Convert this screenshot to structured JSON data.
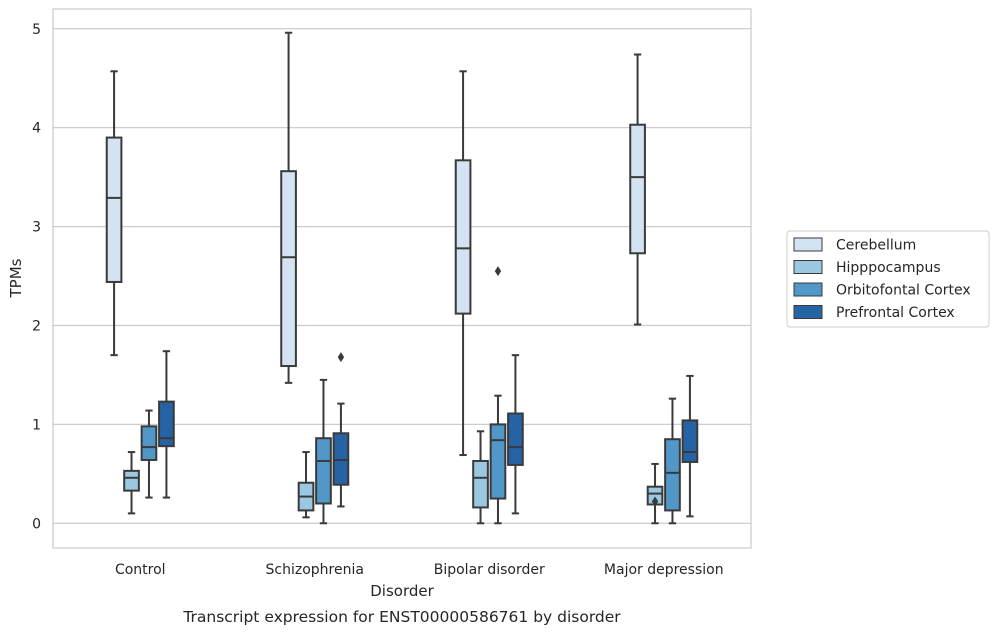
{
  "caption": "Transcript expression for ENST00000586761 by disorder",
  "chart_data": {
    "type": "box",
    "title": "",
    "xlabel": "Disorder",
    "ylabel": "TPMs",
    "ylim": [
      -0.25,
      5.2
    ],
    "yticks": [
      0,
      1,
      2,
      3,
      4,
      5
    ],
    "grid": "horizontal",
    "legend_position": "right",
    "categories": [
      "Control",
      "Schizophrenia",
      "Bipolar disorder",
      "Major depression"
    ],
    "series": [
      {
        "name": "Cerebellum",
        "color": "#d3e3f3",
        "boxes": [
          {
            "whisker_low": 1.7,
            "q1": 2.44,
            "median": 3.29,
            "q3": 3.9,
            "whisker_high": 4.57,
            "outliers": []
          },
          {
            "whisker_low": 1.42,
            "q1": 1.59,
            "median": 2.69,
            "q3": 3.56,
            "whisker_high": 4.96,
            "outliers": []
          },
          {
            "whisker_low": 0.69,
            "q1": 2.12,
            "median": 2.78,
            "q3": 3.67,
            "whisker_high": 4.57,
            "outliers": []
          },
          {
            "whisker_low": 2.01,
            "q1": 2.73,
            "median": 3.5,
            "q3": 4.03,
            "whisker_high": 4.74,
            "outliers": []
          }
        ]
      },
      {
        "name": "Hipppocampus",
        "color": "#9ac8e0",
        "boxes": [
          {
            "whisker_low": 0.1,
            "q1": 0.33,
            "median": 0.46,
            "q3": 0.53,
            "whisker_high": 0.72,
            "outliers": []
          },
          {
            "whisker_low": 0.06,
            "q1": 0.13,
            "median": 0.27,
            "q3": 0.41,
            "whisker_high": 0.72,
            "outliers": []
          },
          {
            "whisker_low": 0.0,
            "q1": 0.16,
            "median": 0.46,
            "q3": 0.63,
            "whisker_high": 0.93,
            "outliers": []
          },
          {
            "whisker_low": 0.0,
            "q1": 0.19,
            "median": 0.3,
            "q3": 0.37,
            "whisker_high": 0.6,
            "outliers": [
              0.22
            ]
          }
        ]
      },
      {
        "name": "Orbitofontal Cortex",
        "color": "#5198c8",
        "boxes": [
          {
            "whisker_low": 0.26,
            "q1": 0.64,
            "median": 0.77,
            "q3": 0.98,
            "whisker_high": 1.14,
            "outliers": []
          },
          {
            "whisker_low": 0.0,
            "q1": 0.2,
            "median": 0.63,
            "q3": 0.86,
            "whisker_high": 1.45,
            "outliers": []
          },
          {
            "whisker_low": 0.0,
            "q1": 0.25,
            "median": 0.84,
            "q3": 1.0,
            "whisker_high": 1.29,
            "outliers": [
              2.55
            ]
          },
          {
            "whisker_low": 0.0,
            "q1": 0.13,
            "median": 0.51,
            "q3": 0.85,
            "whisker_high": 1.26,
            "outliers": []
          }
        ]
      },
      {
        "name": "Prefrontal Cortex",
        "color": "#2563a5",
        "boxes": [
          {
            "whisker_low": 0.26,
            "q1": 0.78,
            "median": 0.86,
            "q3": 1.23,
            "whisker_high": 1.74,
            "outliers": []
          },
          {
            "whisker_low": 0.17,
            "q1": 0.39,
            "median": 0.64,
            "q3": 0.91,
            "whisker_high": 1.21,
            "outliers": [
              1.68
            ]
          },
          {
            "whisker_low": 0.1,
            "q1": 0.59,
            "median": 0.77,
            "q3": 1.11,
            "whisker_high": 1.7,
            "outliers": []
          },
          {
            "whisker_low": 0.07,
            "q1": 0.62,
            "median": 0.72,
            "q3": 1.04,
            "whisker_high": 1.49,
            "outliers": []
          }
        ]
      }
    ]
  }
}
